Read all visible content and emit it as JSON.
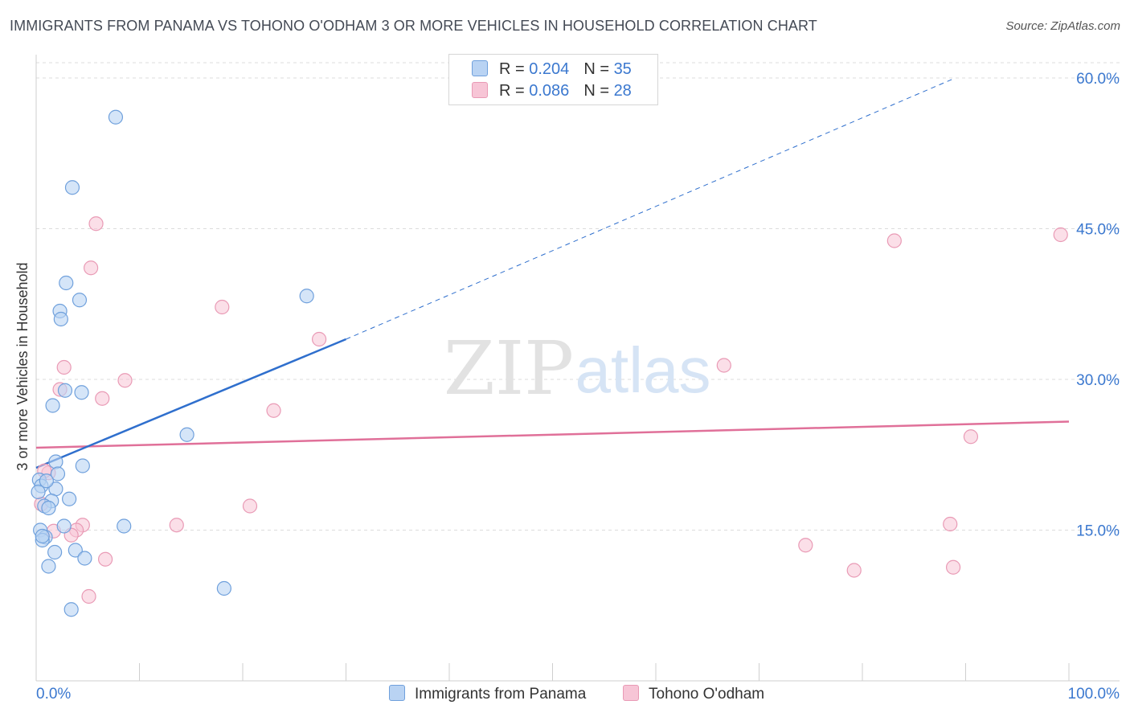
{
  "title": "IMMIGRANTS FROM PANAMA VS TOHONO O'ODHAM 3 OR MORE VEHICLES IN HOUSEHOLD CORRELATION CHART",
  "source": "Source: ZipAtlas.com",
  "watermark": {
    "zip": "ZIP",
    "atlas": "atlas"
  },
  "legend": {
    "r_label": "R = ",
    "n_label": "N = ",
    "series": [
      {
        "r": "0.204",
        "n": "35"
      },
      {
        "r": "0.086",
        "n": "28"
      }
    ]
  },
  "colors": {
    "blue_fill": "#b9d3f3",
    "blue_stroke": "#6fa0dc",
    "blue_line": "#2f6fcd",
    "pink_fill": "#f7c5d6",
    "pink_stroke": "#e99ab5",
    "pink_line": "#e07099",
    "grid": "#dcdcdc",
    "axis_text": "#3b78cf"
  },
  "chart_data": {
    "type": "scatter",
    "title": "IMMIGRANTS FROM PANAMA VS TOHONO O'ODHAM 3 OR MORE VEHICLES IN HOUSEHOLD CORRELATION CHART",
    "xlabel": "",
    "ylabel": "3 or more Vehicles in Household",
    "xlim": [
      0,
      100
    ],
    "ylim": [
      0,
      62
    ],
    "x_tick_labels": [
      "0.0%",
      "100.0%"
    ],
    "y_ticks": [
      15,
      30,
      45,
      60
    ],
    "y_tick_labels": [
      "15.0%",
      "30.0%",
      "45.0%",
      "60.0%"
    ],
    "series": [
      {
        "name": "Immigrants from Panama",
        "points": [
          [
            7.7,
            56.1
          ],
          [
            3.5,
            49.1
          ],
          [
            2.9,
            39.6
          ],
          [
            4.2,
            37.9
          ],
          [
            2.3,
            36.8
          ],
          [
            2.4,
            36.0
          ],
          [
            26.2,
            38.3
          ],
          [
            2.8,
            28.9
          ],
          [
            4.4,
            28.7
          ],
          [
            1.6,
            27.4
          ],
          [
            14.6,
            24.5
          ],
          [
            1.9,
            21.8
          ],
          [
            4.5,
            21.4
          ],
          [
            0.3,
            20.0
          ],
          [
            2.1,
            20.6
          ],
          [
            1.9,
            19.1
          ],
          [
            0.5,
            19.4
          ],
          [
            3.2,
            18.1
          ],
          [
            1.5,
            17.9
          ],
          [
            0.8,
            17.4
          ],
          [
            1.2,
            17.2
          ],
          [
            0.4,
            15.0
          ],
          [
            8.5,
            15.4
          ],
          [
            2.7,
            15.4
          ],
          [
            0.9,
            14.3
          ],
          [
            0.6,
            14.0
          ],
          [
            3.8,
            13.0
          ],
          [
            1.8,
            12.8
          ],
          [
            4.7,
            12.2
          ],
          [
            1.2,
            11.4
          ],
          [
            18.2,
            9.2
          ],
          [
            3.4,
            7.1
          ],
          [
            0.2,
            18.8
          ],
          [
            1.0,
            19.9
          ],
          [
            0.6,
            14.4
          ]
        ],
        "trend": {
          "x": [
            0,
            30
          ],
          "y": [
            21.2,
            34.0
          ]
        },
        "trend_extended": {
          "x": [
            30,
            89
          ],
          "y": [
            34.0,
            60.0
          ]
        }
      },
      {
        "name": "Tohono O'odham",
        "points": [
          [
            5.8,
            45.5
          ],
          [
            5.3,
            41.1
          ],
          [
            18.0,
            37.2
          ],
          [
            27.4,
            34.0
          ],
          [
            2.7,
            31.2
          ],
          [
            8.6,
            29.9
          ],
          [
            2.3,
            29.0
          ],
          [
            6.4,
            28.1
          ],
          [
            23.0,
            26.9
          ],
          [
            66.6,
            31.4
          ],
          [
            83.1,
            43.8
          ],
          [
            99.2,
            44.4
          ],
          [
            90.5,
            24.3
          ],
          [
            1.2,
            20.7
          ],
          [
            0.5,
            17.6
          ],
          [
            20.7,
            17.4
          ],
          [
            13.6,
            15.5
          ],
          [
            4.5,
            15.5
          ],
          [
            3.9,
            15.0
          ],
          [
            1.7,
            14.9
          ],
          [
            3.4,
            14.5
          ],
          [
            88.5,
            15.6
          ],
          [
            74.5,
            13.5
          ],
          [
            6.7,
            12.1
          ],
          [
            88.8,
            11.3
          ],
          [
            79.2,
            11.0
          ],
          [
            5.1,
            8.4
          ],
          [
            0.8,
            20.9
          ]
        ],
        "trend": {
          "x": [
            0,
            100
          ],
          "y": [
            23.2,
            25.8
          ]
        }
      }
    ]
  }
}
